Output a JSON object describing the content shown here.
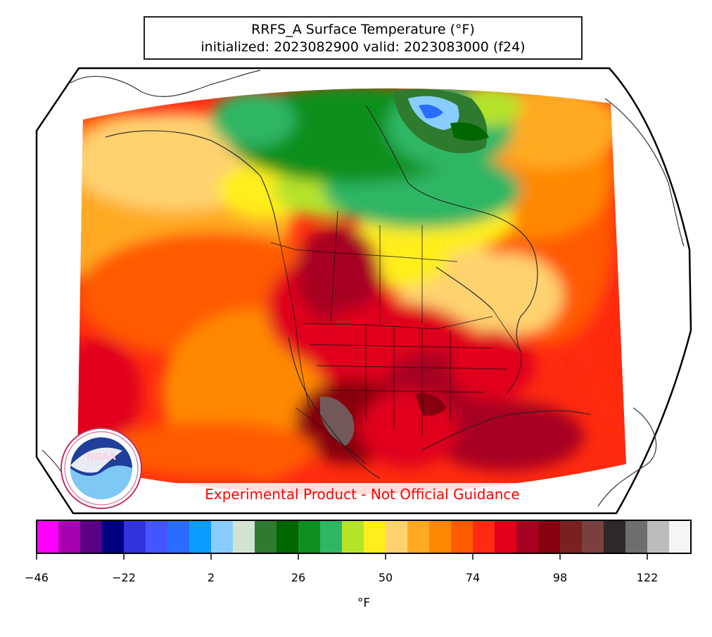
{
  "title": {
    "line1": "RRFS_A Surface Temperature (°F)",
    "line2": "initialized: 2023082900 valid: 2023083000 (f24)"
  },
  "disclaimer": "Experimental Product - Not Official Guidance",
  "logo": {
    "text": "NOAA",
    "ring_text": "NATIONAL OCEANIC AND ATMOSPHERIC ADMINISTRATION · U.S. DEPARTMENT OF COMMERCE"
  },
  "colorbar": {
    "unit": "°F",
    "min": -46,
    "max": 134,
    "step": 6,
    "colors": [
      "#ff00ff",
      "#a700b0",
      "#5b0084",
      "#000080",
      "#3333dd",
      "#4455ff",
      "#2a6cff",
      "#0a9cff",
      "#87ceff",
      "#d2e3d4",
      "#2e7a2e",
      "#006600",
      "#0f8f1f",
      "#2db663",
      "#b5e32a",
      "#ffee1a",
      "#ffd270",
      "#ffaa22",
      "#ff8800",
      "#ff5a00",
      "#ff2a10",
      "#e0001a",
      "#a80020",
      "#870010",
      "#7a2020",
      "#7a4040",
      "#2e2828",
      "#6e6e6e",
      "#bcbcbc",
      "#f5f5f5"
    ],
    "ticks": [
      "−46",
      "−22",
      "2",
      "26",
      "50",
      "74",
      "98",
      "122"
    ]
  }
}
